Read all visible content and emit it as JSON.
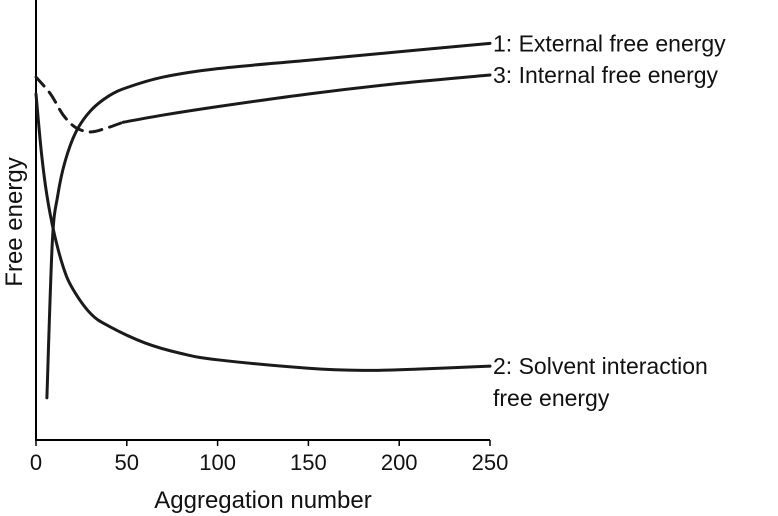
{
  "chart_data": {
    "type": "line",
    "title": "",
    "xlabel": "Aggregation number",
    "ylabel": "Free energy",
    "xlim": [
      0,
      250
    ],
    "ylim": [
      0,
      1
    ],
    "xticks": [
      0,
      50,
      100,
      150,
      200,
      250
    ],
    "grid": false,
    "series": [
      {
        "name": "1: External free energy",
        "label_lines": [
          "1: External free energy"
        ],
        "style": "solid",
        "points": [
          [
            6,
            0.1
          ],
          [
            9,
            0.47
          ],
          [
            12,
            0.58
          ],
          [
            16,
            0.66
          ],
          [
            22,
            0.73
          ],
          [
            30,
            0.78
          ],
          [
            40,
            0.815
          ],
          [
            50,
            0.835
          ],
          [
            70,
            0.86
          ],
          [
            100,
            0.88
          ],
          [
            150,
            0.9
          ],
          [
            200,
            0.92
          ],
          [
            250,
            0.94
          ]
        ]
      },
      {
        "name": "2: Solvent interaction free energy",
        "label_lines": [
          "2: Solvent interaction",
          "free energy"
        ],
        "style": "solid",
        "points": [
          [
            0,
            0.82
          ],
          [
            3,
            0.68
          ],
          [
            6,
            0.58
          ],
          [
            10,
            0.49
          ],
          [
            15,
            0.41
          ],
          [
            20,
            0.36
          ],
          [
            30,
            0.3
          ],
          [
            40,
            0.27
          ],
          [
            60,
            0.23
          ],
          [
            80,
            0.205
          ],
          [
            100,
            0.19
          ],
          [
            150,
            0.17
          ],
          [
            180,
            0.165
          ],
          [
            210,
            0.168
          ],
          [
            250,
            0.175
          ]
        ]
      },
      {
        "name": "3: Internal free energy",
        "label_lines": [
          "3: Internal free energy"
        ],
        "style": "dashed-then-solid",
        "dashed_points": [
          [
            0,
            0.86
          ],
          [
            8,
            0.82
          ],
          [
            15,
            0.77
          ],
          [
            22,
            0.74
          ],
          [
            30,
            0.73
          ],
          [
            38,
            0.738
          ],
          [
            48,
            0.753
          ]
        ],
        "points": [
          [
            48,
            0.753
          ],
          [
            70,
            0.77
          ],
          [
            100,
            0.79
          ],
          [
            150,
            0.82
          ],
          [
            200,
            0.845
          ],
          [
            250,
            0.865
          ]
        ]
      }
    ]
  }
}
